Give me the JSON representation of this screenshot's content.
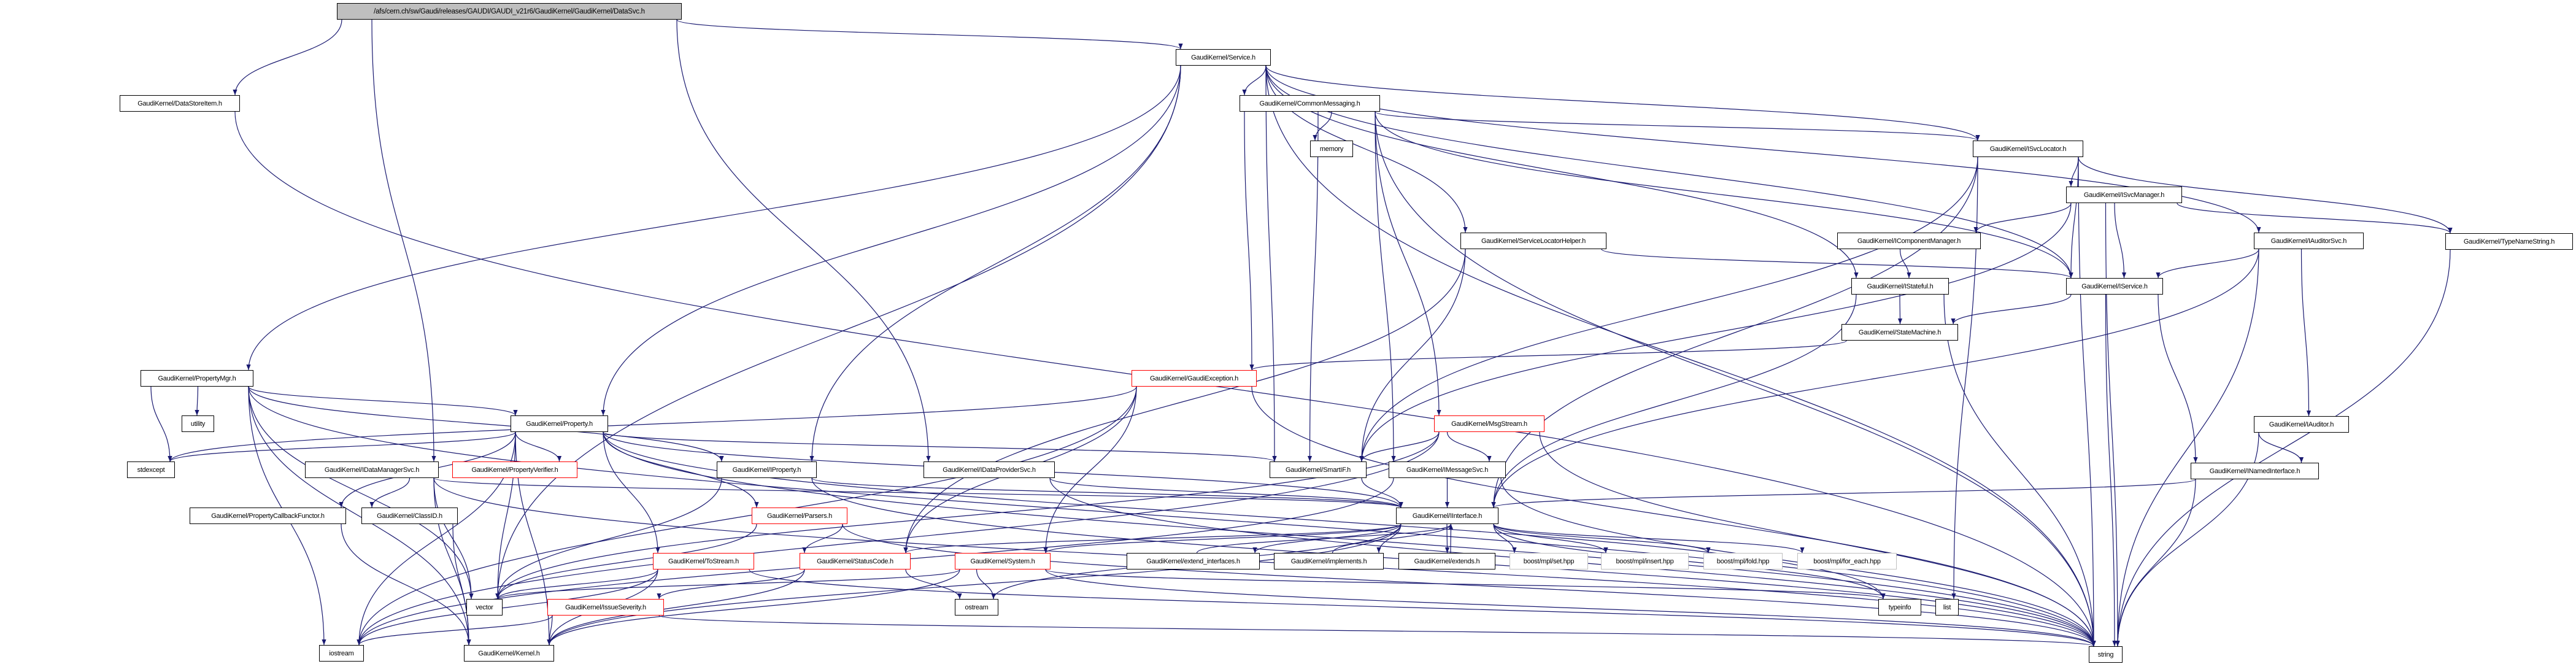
{
  "graph": {
    "edge_color": "#191970",
    "incomplete_border_color": "#ff0000",
    "external_border_color": "#bfbfbf",
    "root_fill": "#bfbfbf",
    "nodes": {
      "root": {
        "label": "/afs/cern.ch/sw/Gaudi/releases/GAUDI/GAUDI_v21r6/GaudiKernel/GaudiKernel/DataSvc.h",
        "style": "root"
      },
      "DataStoreItem": {
        "label": "GaudiKernel/DataStoreItem.h",
        "style": "normal"
      },
      "Service": {
        "label": "GaudiKernel/Service.h",
        "style": "normal"
      },
      "CommonMessaging": {
        "label": "GaudiKernel/CommonMessaging.h",
        "style": "normal"
      },
      "memory": {
        "label": "memory",
        "style": "normal"
      },
      "ISvcLocator": {
        "label": "GaudiKernel/ISvcLocator.h",
        "style": "normal"
      },
      "ISvcManager": {
        "label": "GaudiKernel/ISvcManager.h",
        "style": "normal"
      },
      "ServiceLocatorHelper": {
        "label": "GaudiKernel/ServiceLocatorHelper.h",
        "style": "normal"
      },
      "IComponentManager": {
        "label": "GaudiKernel/IComponentManager.h",
        "style": "normal"
      },
      "IAuditorSvc": {
        "label": "GaudiKernel/IAuditorSvc.h",
        "style": "normal"
      },
      "TypeNameString": {
        "label": "GaudiKernel/TypeNameString.h",
        "style": "normal"
      },
      "IStateful": {
        "label": "GaudiKernel/IStateful.h",
        "style": "normal"
      },
      "IService": {
        "label": "GaudiKernel/IService.h",
        "style": "normal"
      },
      "StateMachine": {
        "label": "GaudiKernel/StateMachine.h",
        "style": "normal"
      },
      "PropertyMgr": {
        "label": "GaudiKernel/PropertyMgr.h",
        "style": "normal"
      },
      "GaudiException": {
        "label": "GaudiKernel/GaudiException.h",
        "style": "red"
      },
      "utility": {
        "label": "utility",
        "style": "normal"
      },
      "Property": {
        "label": "GaudiKernel/Property.h",
        "style": "normal"
      },
      "MsgStream": {
        "label": "GaudiKernel/MsgStream.h",
        "style": "red"
      },
      "IAuditor": {
        "label": "GaudiKernel/IAuditor.h",
        "style": "normal"
      },
      "stdexcept": {
        "label": "stdexcept",
        "style": "normal"
      },
      "IDataManagerSvc": {
        "label": "GaudiKernel/IDataManagerSvc.h",
        "style": "normal"
      },
      "PropertyVerifier": {
        "label": "GaudiKernel/PropertyVerifier.h",
        "style": "red"
      },
      "IProperty": {
        "label": "GaudiKernel/IProperty.h",
        "style": "normal"
      },
      "IDataProviderSvc": {
        "label": "GaudiKernel/IDataProviderSvc.h",
        "style": "normal"
      },
      "SmartIF": {
        "label": "GaudiKernel/SmartIF.h",
        "style": "normal"
      },
      "IMessageSvc": {
        "label": "GaudiKernel/IMessageSvc.h",
        "style": "normal"
      },
      "INamedInterface": {
        "label": "GaudiKernel/INamedInterface.h",
        "style": "normal"
      },
      "PropertyCallbackFunctor": {
        "label": "GaudiKernel/PropertyCallbackFunctor.h",
        "style": "normal"
      },
      "ClassID": {
        "label": "GaudiKernel/ClassID.h",
        "style": "normal"
      },
      "Parsers": {
        "label": "GaudiKernel/Parsers.h",
        "style": "red"
      },
      "IInterface": {
        "label": "GaudiKernel/IInterface.h",
        "style": "normal"
      },
      "ToStream": {
        "label": "GaudiKernel/ToStream.h",
        "style": "red"
      },
      "StatusCode": {
        "label": "GaudiKernel/StatusCode.h",
        "style": "red"
      },
      "System": {
        "label": "GaudiKernel/System.h",
        "style": "red"
      },
      "extend_interfaces": {
        "label": "GaudiKernel/extend_interfaces.h",
        "style": "normal"
      },
      "implements": {
        "label": "GaudiKernel/implements.h",
        "style": "normal"
      },
      "extends": {
        "label": "GaudiKernel/extends.h",
        "style": "normal"
      },
      "mpl_set": {
        "label": "boost/mpl/set.hpp",
        "style": "gray"
      },
      "mpl_insert": {
        "label": "boost/mpl/insert.hpp",
        "style": "gray"
      },
      "mpl_fold": {
        "label": "boost/mpl/fold.hpp",
        "style": "gray"
      },
      "mpl_for_each": {
        "label": "boost/mpl/for_each.hpp",
        "style": "gray"
      },
      "vector": {
        "label": "vector",
        "style": "normal"
      },
      "IssueSeverity": {
        "label": "GaudiKernel/IssueSeverity.h",
        "style": "red"
      },
      "ostream": {
        "label": "ostream",
        "style": "normal"
      },
      "typeinfo": {
        "label": "typeinfo",
        "style": "normal"
      },
      "list": {
        "label": "list",
        "style": "normal"
      },
      "iostream": {
        "label": "iostream",
        "style": "normal"
      },
      "Kernel": {
        "label": "GaudiKernel/Kernel.h",
        "style": "normal"
      },
      "string": {
        "label": "string",
        "style": "normal"
      }
    },
    "edges": [
      [
        "root",
        "DataStoreItem"
      ],
      [
        "root",
        "Service"
      ],
      [
        "root",
        "IDataManagerSvc"
      ],
      [
        "root",
        "IDataProviderSvc"
      ],
      [
        "DataStoreItem",
        "string"
      ],
      [
        "Service",
        "CommonMessaging"
      ],
      [
        "Service",
        "PropertyMgr"
      ],
      [
        "Service",
        "Property"
      ],
      [
        "Service",
        "IProperty"
      ],
      [
        "Service",
        "IService"
      ],
      [
        "Service",
        "ISvcLocator"
      ],
      [
        "Service",
        "IAuditorSvc"
      ],
      [
        "Service",
        "SmartIF"
      ],
      [
        "Service",
        "ServiceLocatorHelper"
      ],
      [
        "Service",
        "IStateful"
      ],
      [
        "Service",
        "vector"
      ],
      [
        "Service",
        "string"
      ],
      [
        "CommonMessaging",
        "memory"
      ],
      [
        "CommonMessaging",
        "GaudiException"
      ],
      [
        "CommonMessaging",
        "SmartIF"
      ],
      [
        "CommonMessaging",
        "IMessageSvc"
      ],
      [
        "CommonMessaging",
        "MsgStream"
      ],
      [
        "CommonMessaging",
        "ISvcLocator"
      ],
      [
        "CommonMessaging",
        "IService"
      ],
      [
        "CommonMessaging",
        "string"
      ],
      [
        "ISvcLocator",
        "ISvcManager"
      ],
      [
        "ISvcLocator",
        "IInterface"
      ],
      [
        "ISvcLocator",
        "SmartIF"
      ],
      [
        "ISvcLocator",
        "string"
      ],
      [
        "ISvcLocator",
        "list"
      ],
      [
        "ISvcLocator",
        "TypeNameString"
      ],
      [
        "ISvcLocator",
        "IService"
      ],
      [
        "ISvcManager",
        "IComponentManager"
      ],
      [
        "ISvcManager",
        "IService"
      ],
      [
        "ISvcManager",
        "SmartIF"
      ],
      [
        "ISvcManager",
        "TypeNameString"
      ],
      [
        "ISvcManager",
        "string"
      ],
      [
        "IComponentManager",
        "IStateful"
      ],
      [
        "ServiceLocatorHelper",
        "IService"
      ],
      [
        "ServiceLocatorHelper",
        "SmartIF"
      ],
      [
        "ServiceLocatorHelper",
        "StatusCode"
      ],
      [
        "IStateful",
        "StateMachine"
      ],
      [
        "IStateful",
        "IInterface"
      ],
      [
        "IStateful",
        "string"
      ],
      [
        "IService",
        "StateMachine"
      ],
      [
        "IService",
        "INamedInterface"
      ],
      [
        "IService",
        "string"
      ],
      [
        "StateMachine",
        "GaudiException"
      ],
      [
        "IAuditorSvc",
        "IService"
      ],
      [
        "IAuditorSvc",
        "IAuditor"
      ],
      [
        "IAuditorSvc",
        "IInterface"
      ],
      [
        "IAuditorSvc",
        "string"
      ],
      [
        "IAuditor",
        "INamedInterface"
      ],
      [
        "IAuditor",
        "string"
      ],
      [
        "INamedInterface",
        "IInterface"
      ],
      [
        "INamedInterface",
        "string"
      ],
      [
        "TypeNameString",
        "string"
      ],
      [
        "PropertyMgr",
        "utility"
      ],
      [
        "PropertyMgr",
        "stdexcept"
      ],
      [
        "PropertyMgr",
        "Property"
      ],
      [
        "PropertyMgr",
        "IProperty"
      ],
      [
        "PropertyMgr",
        "vector"
      ],
      [
        "PropertyMgr",
        "iostream"
      ],
      [
        "PropertyMgr",
        "Kernel"
      ],
      [
        "PropertyMgr",
        "string"
      ],
      [
        "Property",
        "PropertyVerifier"
      ],
      [
        "Property",
        "PropertyCallbackFunctor"
      ],
      [
        "Property",
        "stdexcept"
      ],
      [
        "Property",
        "ToStream"
      ],
      [
        "Property",
        "Parsers"
      ],
      [
        "Property",
        "SmartIF"
      ],
      [
        "Property",
        "IInterface"
      ],
      [
        "Property",
        "vector"
      ],
      [
        "Property",
        "iostream"
      ],
      [
        "Property",
        "string"
      ],
      [
        "Property",
        "typeinfo"
      ],
      [
        "Property",
        "Kernel"
      ],
      [
        "IDataManagerSvc",
        "ClassID"
      ],
      [
        "IDataManagerSvc",
        "IInterface"
      ],
      [
        "IDataManagerSvc",
        "vector"
      ],
      [
        "IDataManagerSvc",
        "string"
      ],
      [
        "IDataManagerSvc",
        "Kernel"
      ],
      [
        "PropertyCallbackFunctor",
        "Kernel"
      ],
      [
        "ClassID",
        "Kernel"
      ],
      [
        "IProperty",
        "IInterface"
      ],
      [
        "IProperty",
        "vector"
      ],
      [
        "IProperty",
        "string"
      ],
      [
        "IDataProviderSvc",
        "IInterface"
      ],
      [
        "IDataProviderSvc",
        "string"
      ],
      [
        "GaudiException",
        "StatusCode"
      ],
      [
        "GaudiException",
        "System"
      ],
      [
        "GaudiException",
        "string"
      ],
      [
        "GaudiException",
        "iostream"
      ],
      [
        "GaudiException",
        "stdexcept"
      ],
      [
        "MsgStream",
        "IMessageSvc"
      ],
      [
        "MsgStream",
        "SmartIF"
      ],
      [
        "MsgStream",
        "iostream"
      ],
      [
        "MsgStream",
        "string"
      ],
      [
        "MsgStream",
        "vector"
      ],
      [
        "IMessageSvc",
        "IInterface"
      ],
      [
        "IMessageSvc",
        "string"
      ],
      [
        "IMessageSvc",
        "iostream"
      ],
      [
        "SmartIF",
        "IInterface"
      ],
      [
        "Parsers",
        "StatusCode"
      ],
      [
        "Parsers",
        "vector"
      ],
      [
        "Parsers",
        "string"
      ],
      [
        "ToStream",
        "iostream"
      ],
      [
        "ToStream",
        "vector"
      ],
      [
        "ToStream",
        "string"
      ],
      [
        "ToStream",
        "Kernel"
      ],
      [
        "StatusCode",
        "IssueSeverity"
      ],
      [
        "StatusCode",
        "ostream"
      ],
      [
        "StatusCode",
        "Kernel"
      ],
      [
        "System",
        "Kernel"
      ],
      [
        "System",
        "vector"
      ],
      [
        "System",
        "string"
      ],
      [
        "System",
        "ostream"
      ],
      [
        "System",
        "typeinfo"
      ],
      [
        "IssueSeverity",
        "iostream"
      ],
      [
        "IssueSeverity",
        "string"
      ],
      [
        "IssueSeverity",
        "Kernel"
      ],
      [
        "IInterface",
        "StatusCode"
      ],
      [
        "IInterface",
        "System"
      ],
      [
        "IInterface",
        "extend_interfaces"
      ],
      [
        "IInterface",
        "implements"
      ],
      [
        "IInterface",
        "extends"
      ],
      [
        "IInterface",
        "mpl_set"
      ],
      [
        "IInterface",
        "mpl_insert"
      ],
      [
        "IInterface",
        "mpl_fold"
      ],
      [
        "IInterface",
        "mpl_for_each"
      ],
      [
        "IInterface",
        "typeinfo"
      ],
      [
        "IInterface",
        "ostream"
      ],
      [
        "IInterface",
        "Kernel"
      ],
      [
        "extend_interfaces",
        "IInterface"
      ],
      [
        "implements",
        "IInterface"
      ],
      [
        "extends",
        "IInterface"
      ]
    ]
  }
}
